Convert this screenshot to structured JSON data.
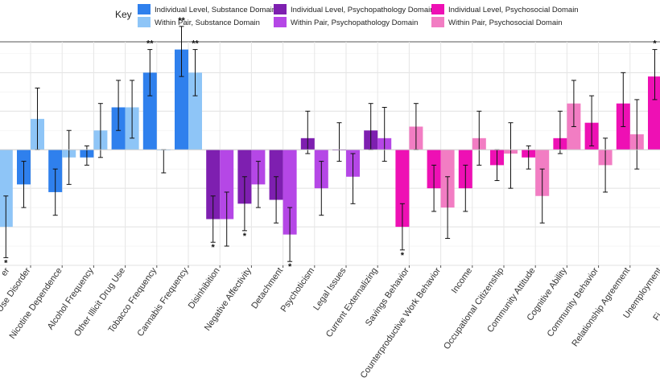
{
  "chart_data": {
    "type": "bar",
    "legend": {
      "title": "Key",
      "placement": "top",
      "entries": [
        {
          "series": "Individual Level, Substance Domain",
          "color": "#2f80ed"
        },
        {
          "series": "Within Pair, Substance Domain",
          "color": "#8ec5f7"
        },
        {
          "series": "Individual Level, Psychopathology Domain",
          "color": "#7e1fb0"
        },
        {
          "series": "Within Pair, Psychopathology Domain",
          "color": "#b547e6"
        },
        {
          "series": "Individual Level, Psychosocial Domain",
          "color": "#ee10b4"
        },
        {
          "series": "Within Pair, Psychosocial Domain",
          "color": "#f27dc3"
        }
      ]
    },
    "grid": true,
    "ylim": [
      -0.3,
      0.28
    ],
    "categories": [
      "Cannabis Use Disorder",
      "Nicotine Dependence",
      "Alcohol Frequency",
      "Other Illicit Drug Use",
      "Tobacco Frequency",
      "Cannabis Frequency",
      "Disinhibition",
      "Negative Affectivity",
      "Detachment",
      "Psychoticism",
      "Legal Issues",
      "Current Externalizing",
      "Savings Behavior",
      "Counterproductive Work Behavior",
      "Income",
      "Occupational Citizenship",
      "Community Attitude",
      "Cognitive Ability",
      "Community Behavior",
      "Relationship Agreement",
      "Unemployment"
    ],
    "truncated_labels": {
      "left": "er",
      "right": "Fi"
    },
    "edge_bars": [
      {
        "side": "left",
        "series": "Within Pair, Substance Domain",
        "value": -0.2,
        "ci": [
          -0.28,
          -0.12
        ],
        "sig": "*"
      },
      {
        "side": "right",
        "series": "Within Pair, Psychosocial Domain",
        "value": 0.05,
        "ci": null,
        "sig": ""
      }
    ],
    "series": [
      {
        "name": "Individual Level",
        "values": [
          -0.09,
          -0.11,
          -0.02,
          0.11,
          0.2,
          0.26,
          -0.18,
          -0.14,
          -0.13,
          0.03,
          0.0,
          0.05,
          -0.2,
          -0.1,
          -0.1,
          -0.04,
          -0.02,
          0.03,
          0.07,
          0.12,
          0.19
        ],
        "ci_low": [
          -0.15,
          -0.17,
          -0.04,
          0.05,
          0.14,
          0.19,
          -0.24,
          -0.21,
          -0.19,
          -0.01,
          -0.03,
          0.0,
          -0.26,
          -0.16,
          -0.16,
          -0.08,
          -0.05,
          -0.01,
          0.01,
          0.06,
          0.13
        ],
        "ci_high": [
          -0.03,
          -0.05,
          0.01,
          0.18,
          0.26,
          0.32,
          -0.12,
          -0.07,
          -0.07,
          0.1,
          0.07,
          0.12,
          -0.14,
          -0.04,
          -0.04,
          0.0,
          0.01,
          0.1,
          0.14,
          0.2,
          0.26
        ],
        "sig": [
          "",
          "",
          "",
          "",
          "**",
          "**",
          "*",
          "*",
          "",
          "",
          "",
          "",
          "*",
          "",
          "",
          "",
          "",
          "",
          "",
          "",
          "*"
        ]
      },
      {
        "name": "Within Pair",
        "values": [
          0.08,
          -0.02,
          0.05,
          0.11,
          0.0,
          0.2,
          -0.18,
          -0.09,
          -0.22,
          -0.1,
          -0.07,
          0.03,
          0.06,
          -0.15,
          0.03,
          -0.01,
          -0.12,
          0.12,
          -0.04,
          0.04,
          0.0
        ],
        "ci_low": [
          0.0,
          -0.09,
          -0.02,
          0.03,
          -0.06,
          0.14,
          -0.25,
          -0.15,
          -0.29,
          -0.17,
          -0.14,
          -0.03,
          0.0,
          -0.23,
          -0.04,
          -0.1,
          -0.19,
          0.06,
          -0.11,
          -0.05,
          0.0
        ],
        "ci_high": [
          0.16,
          0.05,
          0.12,
          0.18,
          0.0,
          0.26,
          -0.11,
          -0.03,
          -0.15,
          -0.03,
          -0.01,
          0.11,
          0.12,
          -0.07,
          0.1,
          0.07,
          -0.05,
          0.18,
          0.03,
          0.13,
          0.0
        ],
        "sig": [
          "",
          "",
          "",
          "",
          "",
          "**",
          "",
          "",
          "*",
          "",
          "",
          "",
          "",
          "",
          "",
          "",
          "",
          "",
          "",
          "",
          ""
        ]
      }
    ],
    "category_domain": [
      "substance",
      "substance",
      "substance",
      "substance",
      "substance",
      "substance",
      "psychopathology",
      "psychopathology",
      "psychopathology",
      "psychopathology",
      "psychopathology",
      "psychopathology",
      "psychosocial",
      "psychosocial",
      "psychosocial",
      "psychosocial",
      "psychosocial",
      "psychosocial",
      "psychosocial",
      "psychosocial",
      "psychosocial"
    ],
    "domain_colors": {
      "substance": {
        "individual": "#2f80ed",
        "within": "#8ec5f7"
      },
      "psychopathology": {
        "individual": "#7e1fb0",
        "within": "#b547e6"
      },
      "psychosocial": {
        "individual": "#ee10b4",
        "within": "#f27dc3"
      }
    }
  }
}
